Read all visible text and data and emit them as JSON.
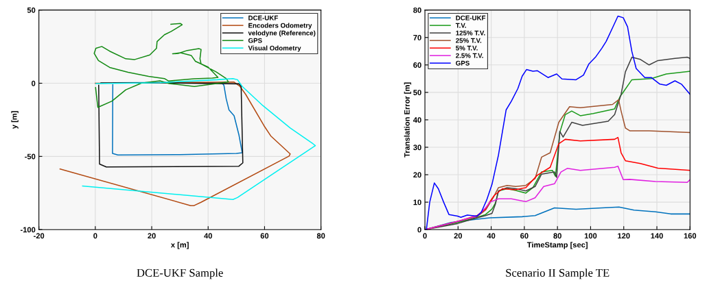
{
  "chart_data": [
    {
      "type": "line",
      "title": "DCE-UKF Sample",
      "xlabel": "x [m]",
      "ylabel": "y [m]",
      "xlim": [
        -20,
        80
      ],
      "ylim": [
        -100,
        50
      ],
      "xticks": [
        -20,
        0,
        20,
        40,
        60,
        80
      ],
      "yticks": [
        -100,
        -50,
        0,
        50
      ],
      "grid": true,
      "legend": "top right",
      "series": [
        {
          "name": "DCE-UKF",
          "color": "#0072bd",
          "x": [
            6.2,
            6.1,
            8,
            30,
            50,
            52.1,
            50.9,
            49.2,
            47.4,
            46.4,
            45.6,
            44.8,
            20,
            6.5
          ],
          "values": [
            -1,
            -48,
            -49,
            -48.8,
            -48,
            -47.5,
            -35.2,
            -22.2,
            -18.3,
            -10.6,
            -1.4,
            0.4,
            0.5,
            0.3
          ]
        },
        {
          "name": "Encoders Odometry",
          "color": "#b34a12",
          "x": [
            0,
            30,
            49.2,
            51.3,
            53.3,
            59.8,
            62.2,
            69.1,
            68.7,
            37.5,
            35,
            33.8,
            -12.5
          ],
          "values": [
            0,
            0.5,
            0.8,
            -2.2,
            -7.6,
            -29,
            -36,
            -48.3,
            -49.8,
            -81.3,
            -83.6,
            -83.6,
            -58.6
          ]
        },
        {
          "name": "velodyne (Reference)",
          "color": "#111111",
          "x": [
            1.2,
            1.5,
            3.9,
            50.9,
            52.3,
            51.7,
            50.9,
            25,
            2
          ],
          "values": [
            -1.4,
            -55.2,
            -57.2,
            -56.7,
            -54.4,
            -2.2,
            -0.4,
            0.2,
            0.2
          ]
        },
        {
          "name": "GPS",
          "color": "#138a13",
          "x": [
            0.1,
            0.9,
            5.9,
            10.8,
            16.4,
            22.9,
            26.2,
            35.1,
            42,
            47.2,
            46.4,
            42.8,
            37.5,
            37.1,
            37.5,
            36.7,
            32.6,
            29.4,
            27.4,
            30.2,
            34,
            35.5,
            40,
            43.5,
            41.5,
            35,
            30,
            26,
            24.5,
            18.9,
            11.6,
            5.1,
            1.1,
            -0.4,
            0.2,
            2.3,
            5.1,
            10.8,
            14,
            19.3,
            21.7,
            21.9,
            24.5,
            26.9,
            30.8,
            30.2,
            26.8
          ],
          "values": [
            -3,
            -16.5,
            -12.2,
            -4.5,
            0.1,
            1.6,
            -0.2,
            -2.2,
            -0.5,
            0.9,
            3.2,
            7.8,
            13.2,
            16.7,
            23.1,
            23.6,
            22.4,
            20.4,
            20.1,
            20.8,
            19,
            15,
            11,
            4,
            3.5,
            3,
            2.2,
            1.5,
            3.2,
            4.7,
            7.5,
            10.8,
            15.5,
            20.4,
            23.9,
            25.1,
            21.9,
            16.7,
            16.2,
            19.3,
            23.9,
            28.5,
            33.1,
            35.4,
            40,
            40.8,
            40.3
          ]
        },
        {
          "name": "Visual Odometry",
          "color": "#00f0f0",
          "x": [
            0.2,
            22.9,
            43.2,
            48.8,
            50.4,
            52.1,
            59.4,
            69.1,
            77.2,
            78,
            50.4,
            48.8,
            -4.5
          ],
          "values": [
            -0.2,
            0.4,
            2.4,
            3.2,
            2.4,
            -2.2,
            -15.3,
            -30.6,
            -41.4,
            -42.6,
            -78.1,
            -79.4,
            -70.2
          ]
        }
      ]
    },
    {
      "type": "line",
      "title": "Scenario II Sample TE",
      "xlabel": "TimeStamp [sec]",
      "ylabel": "Translation Error [m]",
      "xlim": [
        0,
        160
      ],
      "ylim": [
        0,
        80
      ],
      "xticks": [
        0,
        20,
        40,
        60,
        80,
        100,
        120,
        140,
        160
      ],
      "yticks": [
        0,
        10,
        20,
        30,
        40,
        50,
        60,
        70,
        80
      ],
      "grid": true,
      "legend": "top left",
      "series": [
        {
          "name": "DCE-UKF",
          "color": "#0072bd",
          "x": [
            0,
            15.8,
            31.4,
            39.2,
            58.7,
            66.5,
            78.2,
            91.2,
            106.8,
            117.1,
            126.2,
            139.2,
            148.3,
            160
          ],
          "values": [
            0,
            2.6,
            3.8,
            4.3,
            4.7,
            5.1,
            7.9,
            7.4,
            7.9,
            8.2,
            7.1,
            6.5,
            5.7,
            5.7
          ]
        },
        {
          "name": "T.V.",
          "color": "#1a9a1a",
          "x": [
            0,
            19.7,
            31.4,
            36.6,
            40.5,
            42.5,
            44.4,
            49.6,
            54.8,
            60.9,
            65.2,
            70.4,
            76.9,
            78.8,
            81.4,
            84.7,
            88.6,
            93.8,
            101.6,
            114.5,
            117.8,
            119.7,
            124.9,
            136.6,
            145.7,
            160
          ],
          "values": [
            0,
            2.6,
            4.4,
            5.5,
            7.5,
            9.6,
            14.1,
            14.9,
            14.3,
            13.3,
            15.3,
            21,
            21.6,
            19.4,
            35.4,
            41.9,
            43.2,
            41.5,
            42.3,
            44,
            48.5,
            50.1,
            54.6,
            55,
            56.7,
            57.7
          ]
        },
        {
          "name": "125% T.V.",
          "color": "#404040",
          "x": [
            0,
            19.7,
            31.4,
            36.6,
            40.5,
            42.5,
            44.4,
            49.6,
            54.8,
            60.9,
            66.5,
            70.4,
            78.2,
            79.5,
            81.4,
            83.4,
            88.6,
            95.1,
            110.6,
            114.5,
            118.4,
            121,
            124.9,
            130.1,
            135.3,
            140.6,
            150.9,
            158.3,
            160
          ],
          "values": [
            0,
            2.2,
            4.3,
            5.1,
            5.9,
            9.2,
            14.1,
            15.3,
            14.9,
            14.1,
            15.7,
            20.2,
            21,
            19,
            35.8,
            33.7,
            39.1,
            38,
            39.5,
            41.9,
            49.3,
            57.5,
            62.8,
            62,
            60,
            61.6,
            62.4,
            62.8,
            62.4
          ]
        },
        {
          "name": "25% T.V.",
          "color": "#a0522d",
          "x": [
            0,
            19.7,
            31.4,
            36.6,
            41.2,
            44.4,
            49.6,
            54.8,
            60.9,
            66.5,
            70.4,
            75.6,
            80.8,
            87.3,
            93.8,
            113.2,
            116.9,
            118.4,
            121,
            123.6,
            135.3,
            160
          ],
          "values": [
            0,
            3,
            4.7,
            7.1,
            11.6,
            15.3,
            16.1,
            15.7,
            16.1,
            18.6,
            26.4,
            28,
            39.1,
            44.8,
            44.4,
            45.6,
            47.3,
            43.2,
            37,
            36,
            36,
            35.4
          ]
        },
        {
          "name": "5% T.V.",
          "color": "#ff0000",
          "x": [
            0,
            19.7,
            31.4,
            36.6,
            39.2,
            41.8,
            46.8,
            54.8,
            60.9,
            67.8,
            75.6,
            80.8,
            84.7,
            93.8,
            114.5,
            116.5,
            118.4,
            121,
            130.1,
            140.6,
            160
          ],
          "values": [
            0,
            3,
            5.1,
            7.5,
            10.2,
            12.4,
            14.9,
            14.5,
            15.3,
            19.8,
            22.7,
            31.3,
            32.9,
            32.3,
            32.9,
            33.6,
            28,
            25.1,
            24.1,
            22.4,
            21.6
          ]
        },
        {
          "name": "2.5% T.V.",
          "color": "#e020e0",
          "x": [
            0,
            19.7,
            31.4,
            36.6,
            39.2,
            44.4,
            52.2,
            60.9,
            66.5,
            71.7,
            78.2,
            82.1,
            85.9,
            93.8,
            114.5,
            116.5,
            119.7,
            123.6,
            139.2,
            158.3,
            160
          ],
          "values": [
            0,
            3,
            4.9,
            7.9,
            10,
            11.2,
            11.2,
            10.2,
            11.6,
            15.7,
            16.7,
            21,
            22.3,
            21.6,
            22.7,
            23.1,
            18.2,
            18.3,
            17.5,
            17.2,
            18.2
          ]
        },
        {
          "name": "GPS",
          "color": "#0000ff",
          "x": [
            0.9,
            2.9,
            5.7,
            8.1,
            11.3,
            14.5,
            19.7,
            21.7,
            25.6,
            31.4,
            34,
            37.3,
            40.5,
            44.4,
            49,
            52.2,
            56.1,
            58.7,
            61.3,
            65.2,
            67.8,
            74.3,
            79.5,
            82.7,
            91.2,
            95.7,
            99,
            102.9,
            106.8,
            109.4,
            113.2,
            116.5,
            119.7,
            122.3,
            124.9,
            127.5,
            132.7,
            136.6,
            141.8,
            145.7,
            150.9,
            154.8,
            160
          ],
          "values": [
            0,
            10,
            17,
            14.9,
            10,
            5.5,
            4.9,
            4.5,
            5.3,
            4.9,
            6.3,
            10.8,
            16.5,
            27.2,
            43.6,
            46.8,
            51.4,
            55.9,
            58.3,
            57.7,
            57.9,
            55.4,
            56.7,
            54.9,
            54.6,
            56.3,
            60.4,
            62.8,
            66.1,
            68.6,
            73.5,
            77.8,
            77.2,
            73.9,
            64.9,
            58.7,
            55.4,
            55.4,
            53,
            52.6,
            54.2,
            53,
            49.3
          ]
        }
      ]
    }
  ]
}
